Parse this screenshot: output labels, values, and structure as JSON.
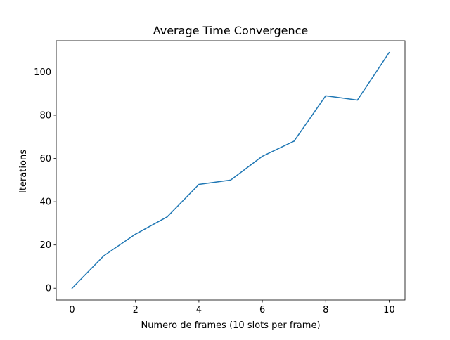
{
  "chart_data": {
    "type": "line",
    "title": "Average Time Convergence",
    "xlabel": "Numero de frames (10 slots per frame)",
    "ylabel": "Iterations",
    "x": [
      0,
      1,
      2,
      3,
      4,
      5,
      6,
      7,
      8,
      9,
      10
    ],
    "series": [
      {
        "values": [
          0,
          15,
          25,
          33,
          48,
          50,
          61,
          68,
          89,
          87,
          109
        ],
        "color": "#1f77b4"
      }
    ],
    "xlim": [
      -0.5,
      10.5
    ],
    "ylim": [
      -5.45,
      114.45
    ],
    "xticks": [
      "0",
      "2",
      "4",
      "6",
      "8",
      "10"
    ],
    "yticks": [
      "0",
      "20",
      "40",
      "60",
      "80",
      "100"
    ],
    "grid": false,
    "legend": false
  }
}
